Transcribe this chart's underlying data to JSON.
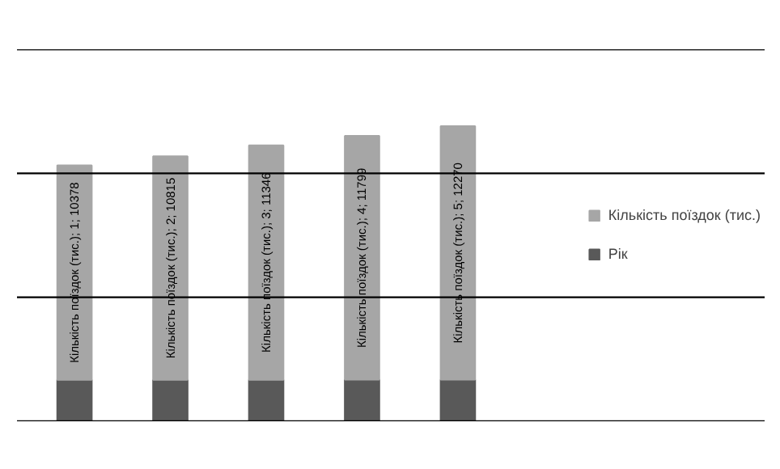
{
  "chart_data": {
    "type": "bar",
    "stacked": true,
    "categories": [
      null,
      null,
      null,
      null,
      null
    ],
    "series": [
      {
        "name": "Рік",
        "color": "#595959",
        "values": [
          2008,
          2009,
          2010,
          2011,
          2012
        ]
      },
      {
        "name": "Кількість поїздок (тис.)",
        "color": "#a6a6a6",
        "values": [
          10378,
          10815,
          11346,
          11799,
          12270
        ],
        "value_labels": [
          "Кількість поїздок (тис.); 1; 10378",
          "Кількість поїздок (тис.); 2; 10815",
          "Кількість поїздок (тис.); 3; 11346",
          "Кількість поїздок (тис.); 4; 11799",
          "Кількість поїздок (тис.); 5; 12270"
        ]
      }
    ],
    "ylim": [
      0,
      18000
    ],
    "yticks": [
      {
        "value": 0,
        "label": null
      },
      {
        "value": 6000,
        "label": null
      },
      {
        "value": 12000,
        "label": null
      },
      {
        "value": 18000,
        "label": null
      }
    ],
    "grid": "y",
    "legend": "right",
    "tick_labels": false
  }
}
